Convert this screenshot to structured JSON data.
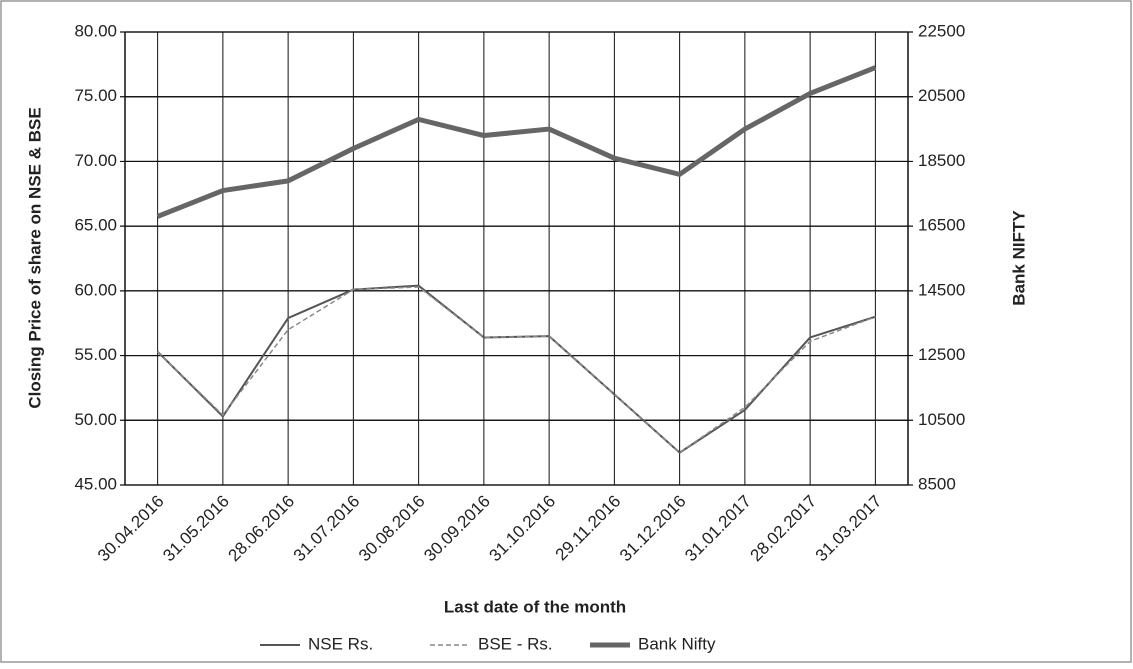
{
  "chart_data": {
    "type": "line",
    "x_label": "Last date of the month",
    "y_label": "Closing Price of share on NSE & BSE",
    "y2_label": "Bank NIFTY",
    "categories": [
      "30.04.2016",
      "31.05.2016",
      "28.06.2016",
      "31.07.2016",
      "30.08.2016",
      "30.09.2016",
      "31.10.2016",
      "29.11.2016",
      "31.12.2016",
      "31.01.2017",
      "28.02.2017",
      "31.03.2017"
    ],
    "series": [
      {
        "name": "NSE Rs.",
        "color": "#555555",
        "values": [
          55.3,
          50.3,
          57.9,
          60.1,
          60.4,
          56.4,
          56.5,
          52.0,
          47.5,
          50.8,
          56.4,
          58.0
        ]
      },
      {
        "name": "BSE - Rs.",
        "color": "#8a8a8a",
        "values": [
          55.3,
          50.4,
          57.0,
          60.1,
          60.3,
          56.4,
          56.5,
          52.0,
          47.5,
          51.0,
          56.1,
          58.0
        ]
      },
      {
        "name": "Bank Nifty",
        "color": "#666666",
        "axis": "y2",
        "values": [
          16800,
          17600,
          17900,
          18900,
          19800,
          19300,
          19500,
          18600,
          18100,
          19500,
          20600,
          21400
        ]
      }
    ],
    "ylim": [
      45,
      80
    ],
    "yticks": [
      {
        "value": 45,
        "label": "45.00"
      },
      {
        "value": 50,
        "label": "50.00"
      },
      {
        "value": 55,
        "label": "55.00"
      },
      {
        "value": 60,
        "label": "60.00"
      },
      {
        "value": 65,
        "label": "65.00"
      },
      {
        "value": 70,
        "label": "70.00"
      },
      {
        "value": 75,
        "label": "75.00"
      },
      {
        "value": 80,
        "label": "80.00"
      }
    ],
    "y2lim": [
      8500,
      22500
    ],
    "y2ticks": [
      8500,
      10500,
      12500,
      14500,
      16500,
      18500,
      20500,
      22500
    ],
    "grid": true,
    "legend": "bottom"
  }
}
